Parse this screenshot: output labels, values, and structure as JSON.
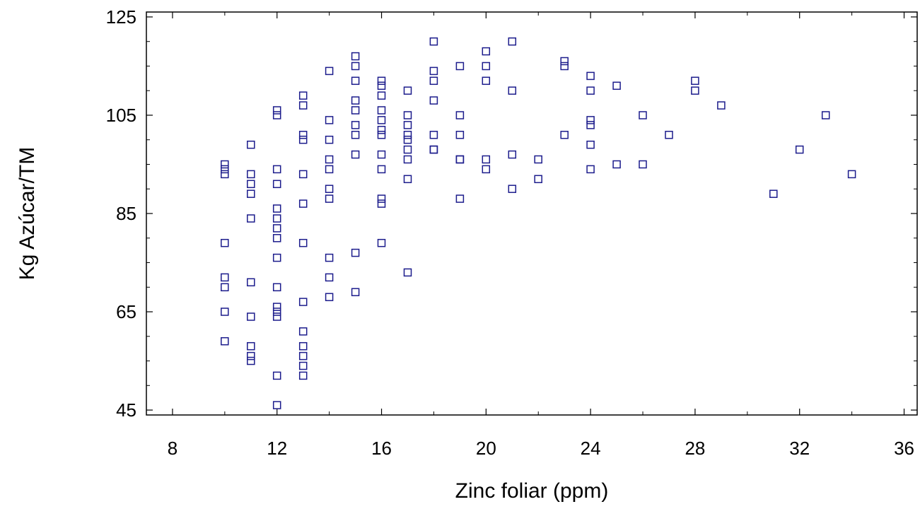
{
  "chart_data": {
    "type": "scatter",
    "title": "",
    "xlabel": "Zinc foliar (ppm)",
    "ylabel": "Kg Azúcar/TM",
    "xlim": [
      7,
      36.5
    ],
    "ylim": [
      44,
      126
    ],
    "x_ticks": [
      8,
      12,
      16,
      20,
      24,
      28,
      32,
      36
    ],
    "y_ticks": [
      45,
      65,
      85,
      105,
      125
    ],
    "marker": "hollow-square",
    "marker_color": "#1c1c8c",
    "grid": false,
    "legend": "none",
    "series": [
      {
        "points": [
          [
            10,
            95
          ],
          [
            10,
            94
          ],
          [
            10,
            93
          ],
          [
            10,
            79
          ],
          [
            10,
            72
          ],
          [
            10,
            70
          ],
          [
            10,
            65
          ],
          [
            10,
            59
          ],
          [
            11,
            99
          ],
          [
            11,
            93
          ],
          [
            11,
            91
          ],
          [
            11,
            89
          ],
          [
            11,
            84
          ],
          [
            11,
            71
          ],
          [
            11,
            64
          ],
          [
            11,
            58
          ],
          [
            11,
            56
          ],
          [
            11,
            55
          ],
          [
            12,
            106
          ],
          [
            12,
            105
          ],
          [
            12,
            94
          ],
          [
            12,
            91
          ],
          [
            12,
            86
          ],
          [
            12,
            84
          ],
          [
            12,
            82
          ],
          [
            12,
            80
          ],
          [
            12,
            76
          ],
          [
            12,
            70
          ],
          [
            12,
            66
          ],
          [
            12,
            65
          ],
          [
            12,
            64
          ],
          [
            12,
            52
          ],
          [
            12,
            46
          ],
          [
            13,
            109
          ],
          [
            13,
            107
          ],
          [
            13,
            101
          ],
          [
            13,
            100
          ],
          [
            13,
            93
          ],
          [
            13,
            87
          ],
          [
            13,
            79
          ],
          [
            13,
            67
          ],
          [
            13,
            61
          ],
          [
            13,
            58
          ],
          [
            13,
            56
          ],
          [
            13,
            54
          ],
          [
            13,
            52
          ],
          [
            14,
            114
          ],
          [
            14,
            104
          ],
          [
            14,
            100
          ],
          [
            14,
            96
          ],
          [
            14,
            94
          ],
          [
            14,
            90
          ],
          [
            14,
            88
          ],
          [
            14,
            76
          ],
          [
            14,
            72
          ],
          [
            14,
            68
          ],
          [
            15,
            117
          ],
          [
            15,
            115
          ],
          [
            15,
            112
          ],
          [
            15,
            108
          ],
          [
            15,
            106
          ],
          [
            15,
            103
          ],
          [
            15,
            101
          ],
          [
            15,
            97
          ],
          [
            15,
            77
          ],
          [
            15,
            69
          ],
          [
            16,
            112
          ],
          [
            16,
            111
          ],
          [
            16,
            109
          ],
          [
            16,
            106
          ],
          [
            16,
            104
          ],
          [
            16,
            102
          ],
          [
            16,
            101
          ],
          [
            16,
            97
          ],
          [
            16,
            94
          ],
          [
            16,
            88
          ],
          [
            16,
            87
          ],
          [
            16,
            79
          ],
          [
            17,
            110
          ],
          [
            17,
            105
          ],
          [
            17,
            103
          ],
          [
            17,
            101
          ],
          [
            17,
            100
          ],
          [
            17,
            98
          ],
          [
            17,
            96
          ],
          [
            17,
            92
          ],
          [
            17,
            73
          ],
          [
            18,
            120
          ],
          [
            18,
            114
          ],
          [
            18,
            112
          ],
          [
            18,
            108
          ],
          [
            18,
            101
          ],
          [
            18,
            98
          ],
          [
            18,
            98
          ],
          [
            19,
            115
          ],
          [
            19,
            105
          ],
          [
            19,
            101
          ],
          [
            19,
            96
          ],
          [
            19,
            96
          ],
          [
            19,
            88
          ],
          [
            20,
            118
          ],
          [
            20,
            115
          ],
          [
            20,
            112
          ],
          [
            20,
            96
          ],
          [
            20,
            94
          ],
          [
            21,
            120
          ],
          [
            21,
            110
          ],
          [
            21,
            97
          ],
          [
            21,
            90
          ],
          [
            22,
            96
          ],
          [
            22,
            92
          ],
          [
            23,
            116
          ],
          [
            23,
            115
          ],
          [
            23,
            101
          ],
          [
            24,
            113
          ],
          [
            24,
            110
          ],
          [
            24,
            104
          ],
          [
            24,
            103
          ],
          [
            24,
            99
          ],
          [
            24,
            94
          ],
          [
            25,
            111
          ],
          [
            25,
            95
          ],
          [
            26,
            105
          ],
          [
            26,
            95
          ],
          [
            27,
            101
          ],
          [
            28,
            112
          ],
          [
            28,
            110
          ],
          [
            29,
            107
          ],
          [
            31,
            89
          ],
          [
            32,
            98
          ],
          [
            33,
            105
          ],
          [
            34,
            93
          ]
        ]
      }
    ]
  }
}
